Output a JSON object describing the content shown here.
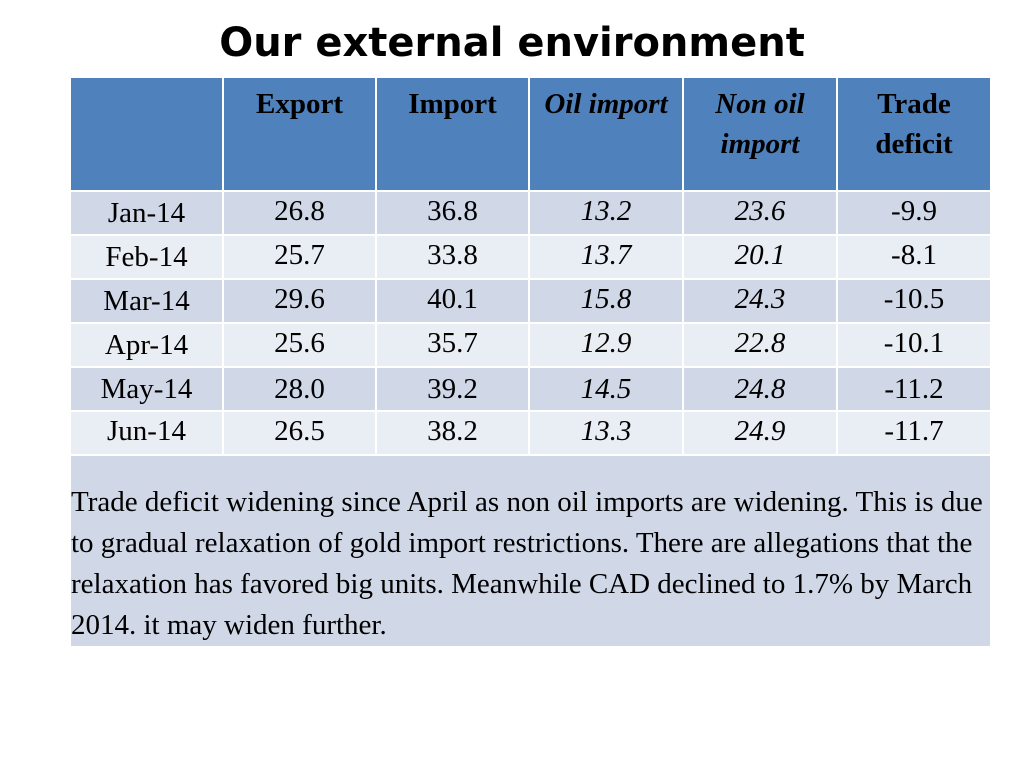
{
  "slide": {
    "title": "Our external environment"
  },
  "table": {
    "headers": [
      "",
      "Export",
      "Import",
      "Oil import",
      "Non oil import",
      "Trade deficit"
    ],
    "rows": [
      {
        "month": "Jan-14",
        "export": "26.8",
        "import": "36.8",
        "oil_import": "13.2",
        "non_oil_import": "23.6",
        "trade_deficit": "-9.9"
      },
      {
        "month": "Feb-14",
        "export": "25.7",
        "import": "33.8",
        "oil_import": "13.7",
        "non_oil_import": "20.1",
        "trade_deficit": "-8.1"
      },
      {
        "month": "Mar-14",
        "export": "29.6",
        "import": "40.1",
        "oil_import": "15.8",
        "non_oil_import": "24.3",
        "trade_deficit": "-10.5"
      },
      {
        "month": "Apr-14",
        "export": "25.6",
        "import": "35.7",
        "oil_import": "12.9",
        "non_oil_import": "22.8",
        "trade_deficit": "-10.1"
      },
      {
        "month": "May-14",
        "export": "28.0",
        "import": "39.2",
        "oil_import": "14.5",
        "non_oil_import": "24.8",
        "trade_deficit": "-11.2"
      },
      {
        "month": "Jun-14",
        "export": "26.5",
        "import": "38.2",
        "oil_import": "13.3",
        "non_oil_import": "24.9",
        "trade_deficit": "-11.7"
      }
    ],
    "note": "Trade deficit widening since April as non oil imports are widening. This is due to gradual relaxation of gold import restrictions. There are allegations that the relaxation has favored big units. Meanwhile CAD declined to 1.7% by March 2014. it may widen further."
  },
  "colors": {
    "header_bg": "#4f81bd",
    "row_odd_bg": "#d0d8e8",
    "row_even_bg": "#e9edf4"
  }
}
